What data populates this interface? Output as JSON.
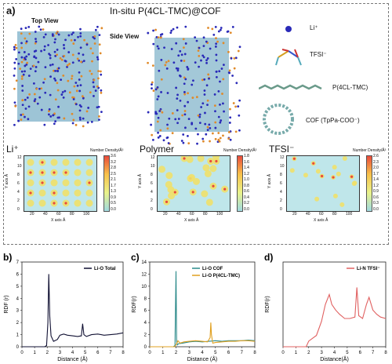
{
  "panel_a": {
    "label": "a)",
    "title": "In-situ P(4CL-TMC)@COF",
    "top_view": "Top View",
    "side_view": "Side View",
    "legend": [
      {
        "name": "Li⁺",
        "icon": "li-ion-sphere-icon"
      },
      {
        "name": "TFSI⁻",
        "icon": "tfsi-molecule-icon"
      },
      {
        "name": "P(4CL-TMC)",
        "icon": "polymer-chain-icon"
      },
      {
        "name": "COF (TpPa-COO⁻)",
        "icon": "cof-ring-icon"
      }
    ],
    "heatmaps": [
      {
        "title": "Li⁺",
        "cbar_title": "Number Density/Å³",
        "cbar_ticks": [
          "3.6",
          "3.2",
          "2.8",
          "2.5",
          "2.1",
          "1.7",
          "1.3",
          "0.9",
          "0.5",
          "0.0"
        ]
      },
      {
        "title": "Polymer",
        "cbar_title": "Number Density/Å³",
        "cbar_ticks": [
          "1.8",
          "1.6",
          "1.4",
          "1.2",
          "1.0",
          "0.8",
          "0.6",
          "0.4",
          "0.2",
          "0.0"
        ]
      },
      {
        "title": "TFSI⁻",
        "cbar_title": "Number Density/Å³",
        "cbar_ticks": [
          "2.6",
          "2.3",
          "2.0",
          "1.7",
          "1.4",
          "1.2",
          "0.9",
          "0.6",
          "0.3",
          "0.0"
        ]
      }
    ],
    "heat_xlabel": "X axis Å",
    "heat_ylabel": "Y axis Å",
    "heat_xticks": [
      "20",
      "40",
      "60",
      "80",
      "100"
    ],
    "heat_yticks": [
      "0",
      "2",
      "4",
      "6",
      "8",
      "10",
      "12"
    ]
  },
  "chart_data": [
    {
      "type": "line",
      "panel": "b)",
      "xlabel": "Distance (Å)",
      "ylabel": "RDF (r)",
      "xlim": [
        0,
        8
      ],
      "ylim": [
        0,
        7
      ],
      "xticks": [
        0,
        1,
        2,
        3,
        4,
        5,
        6,
        7,
        8
      ],
      "yticks": [
        0,
        1,
        2,
        3,
        4,
        5,
        6,
        7
      ],
      "series": [
        {
          "name": "Li-O Total",
          "color": "#111133",
          "x": [
            0,
            1.8,
            1.95,
            2.05,
            2.12,
            2.2,
            2.3,
            2.5,
            2.8,
            3.0,
            3.3,
            3.6,
            4.0,
            4.4,
            4.7,
            4.8,
            4.9,
            5.1,
            5.5,
            6.0,
            6.5,
            7.0,
            7.5,
            8.0
          ],
          "y": [
            0,
            0,
            0.1,
            2.0,
            6.0,
            2.5,
            0.9,
            0.45,
            0.6,
            0.95,
            1.05,
            0.95,
            0.9,
            0.85,
            0.9,
            1.9,
            1.0,
            0.85,
            1.0,
            1.05,
            0.95,
            1.0,
            1.05,
            1.15
          ]
        }
      ]
    },
    {
      "type": "line",
      "panel": "c)",
      "xlabel": "Distance (Å)",
      "ylabel": "RDF(r)",
      "xlim": [
        0,
        8
      ],
      "ylim": [
        0,
        14
      ],
      "xticks": [
        0,
        1,
        2,
        3,
        4,
        5,
        6,
        7,
        8
      ],
      "yticks": [
        0,
        2,
        4,
        6,
        8,
        10,
        12,
        14
      ],
      "series": [
        {
          "name": "Li-O COF",
          "color": "#2b8a8a",
          "x": [
            0,
            1.8,
            1.92,
            2.0,
            2.05,
            2.1,
            2.2,
            2.5,
            3.0,
            3.5,
            4.0,
            4.5,
            5.0,
            5.5,
            6.0,
            6.5,
            7.0,
            7.5,
            8.0
          ],
          "y": [
            0,
            0,
            0.2,
            12.5,
            0.8,
            0.3,
            0.5,
            0.6,
            0.8,
            0.9,
            0.8,
            0.9,
            1.0,
            0.9,
            1.0,
            1.0,
            1.0,
            1.1,
            1.0
          ]
        },
        {
          "name": "Li-O P(4CL-TMC)",
          "color": "#e0a020",
          "x": [
            0,
            1.9,
            2.05,
            2.15,
            2.3,
            2.6,
            3.0,
            3.5,
            4.0,
            4.4,
            4.6,
            4.65,
            4.7,
            4.8,
            5.0,
            5.5,
            6.0,
            6.5,
            7.0,
            7.5,
            8.0
          ],
          "y": [
            0,
            0,
            0.5,
            1.0,
            0.6,
            0.8,
            0.9,
            1.0,
            0.9,
            0.8,
            1.5,
            4.0,
            2.0,
            0.6,
            0.7,
            0.8,
            0.9,
            0.9,
            1.0,
            1.0,
            0.9
          ]
        }
      ]
    },
    {
      "type": "line",
      "panel": "d)",
      "xlabel": "Distance(Å)",
      "ylabel": "RDF(r)",
      "xlim": [
        0,
        8
      ],
      "ylim": [
        0,
        3
      ],
      "xticks": [
        0,
        1,
        2,
        3,
        4,
        5,
        6,
        7,
        8
      ],
      "yticks": [],
      "series": [
        {
          "name": "Li-N TFSI⁻",
          "color": "#e06060",
          "x": [
            0,
            1.8,
            2.0,
            2.3,
            2.6,
            3.0,
            3.3,
            3.6,
            3.8,
            4.1,
            4.4,
            4.8,
            5.2,
            5.6,
            5.75,
            5.9,
            6.2,
            6.5,
            6.7,
            7.0,
            7.3,
            7.6,
            8.0
          ],
          "y": [
            0,
            0,
            0.2,
            0.3,
            0.4,
            0.9,
            1.5,
            1.85,
            1.5,
            1.3,
            1.15,
            1.0,
            1.0,
            1.05,
            2.1,
            1.1,
            1.0,
            1.5,
            1.75,
            1.3,
            1.15,
            1.05,
            1.0
          ]
        }
      ]
    }
  ]
}
